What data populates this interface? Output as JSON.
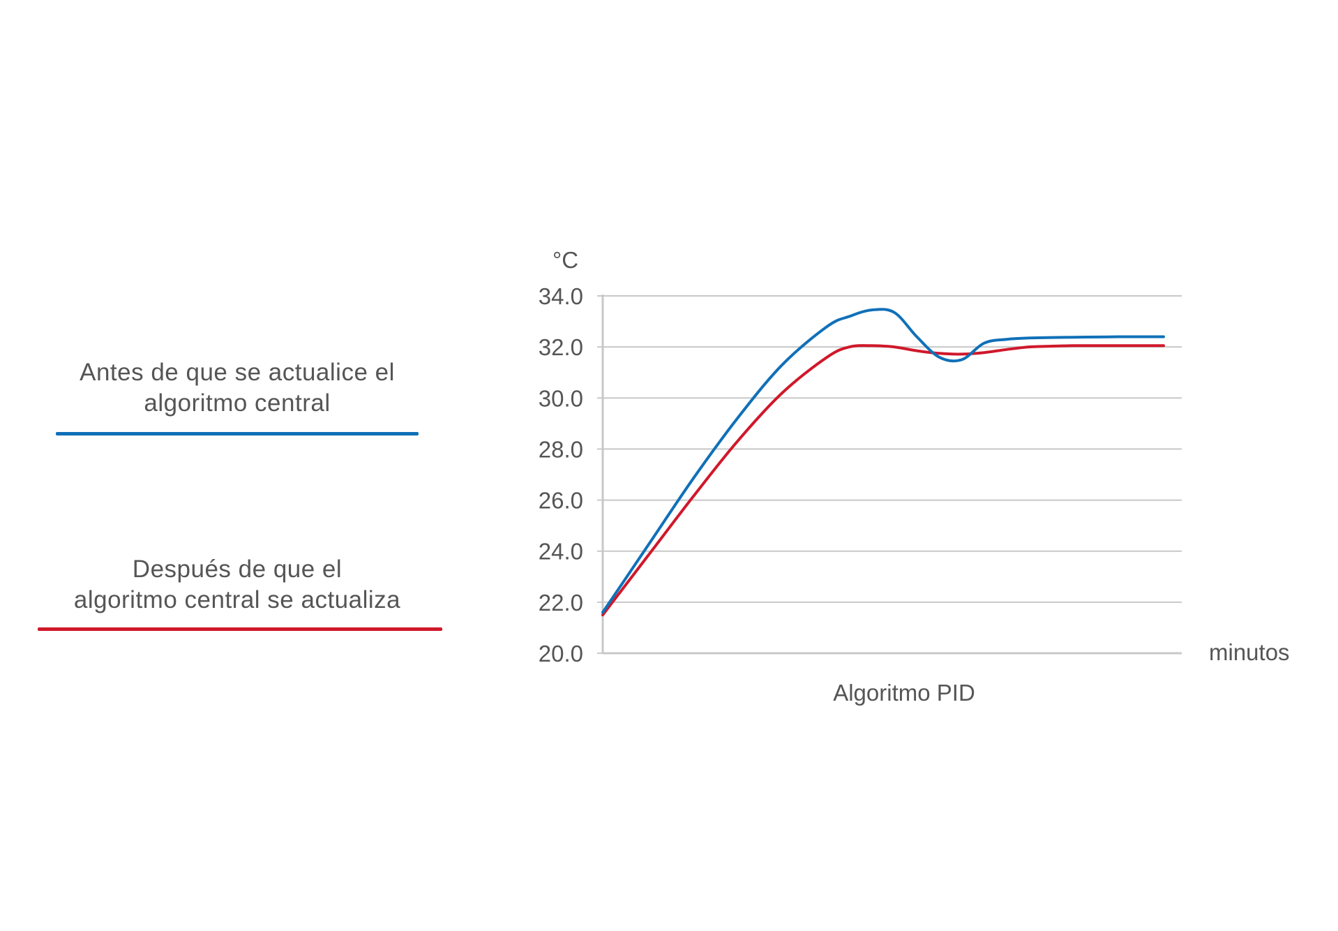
{
  "chart_data": {
    "type": "line",
    "title": "",
    "xlabel": "Algoritmo PID",
    "x_unit_label": "minutos",
    "ylabel": "°C",
    "ylim": [
      20,
      34
    ],
    "yticks": [
      "20.0",
      "22.0",
      "24.0",
      "26.0",
      "28.0",
      "30.0",
      "32.0",
      "34.0"
    ],
    "grid": true,
    "legend_placement": "left",
    "x": [
      0,
      0.08,
      0.16,
      0.24,
      0.32,
      0.4,
      0.44,
      0.48,
      0.52,
      0.56,
      0.6,
      0.64,
      0.68,
      0.72,
      0.76,
      0.8,
      0.84,
      0.88,
      0.92,
      0.96,
      1.0
    ],
    "series": [
      {
        "name": "Antes de que se actualice el algoritmo central",
        "color": "#1070b8",
        "values": [
          21.6,
          24.2,
          26.8,
          29.2,
          31.3,
          32.8,
          33.2,
          33.45,
          33.35,
          32.4,
          31.6,
          31.5,
          32.15,
          32.3,
          32.35,
          32.37,
          32.38,
          32.39,
          32.4,
          32.4,
          32.4
        ]
      },
      {
        "name": "Después de que el algoritmo central se actualiza",
        "color": "#d0182a",
        "values": [
          21.5,
          23.8,
          26.1,
          28.3,
          30.2,
          31.6,
          32.0,
          32.05,
          32.0,
          31.85,
          31.75,
          31.72,
          31.78,
          31.9,
          32.0,
          32.03,
          32.05,
          32.05,
          32.05,
          32.05,
          32.05
        ]
      }
    ]
  },
  "legend": {
    "before_line1": "Antes de que se actualice el",
    "before_line2": "algoritmo central",
    "after_line1": "Después de que el",
    "after_line2": "algoritmo central se actualiza"
  },
  "colors": {
    "before": "#1070b8",
    "after": "#d0182a",
    "grid": "#c8c8c8",
    "text": "#555555"
  }
}
